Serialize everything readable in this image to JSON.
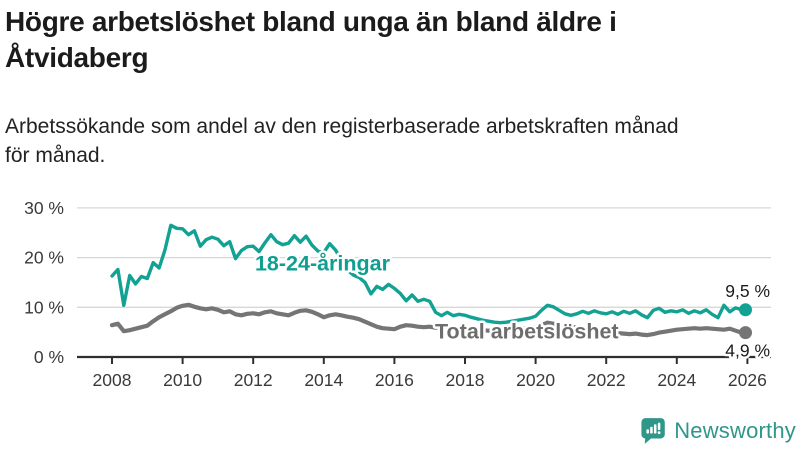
{
  "header": {
    "title": "Högre arbetslöshet bland unga än bland äldre i\nÅtvidaberg",
    "subtitle": "Arbetssökande som andel av den registerbaserade arbetskraften månad\nför månad."
  },
  "colors": {
    "young_line": "#12a294",
    "young_label": "#0f9e90",
    "total_line": "#757575",
    "total_label": "#6d6d6d",
    "axis": "#2f2f2f",
    "tick_text": "#3a3a3a",
    "grid": "#d8d8d8",
    "end_label_text": "#1b1b1b",
    "brand": "#2f968a"
  },
  "chart_data": {
    "type": "line",
    "title": "Högre arbetslöshet bland unga än bland äldre i Åtvidaberg",
    "xlabel": "",
    "ylabel": "",
    "x_start_year": 2008,
    "points_per_year": 6,
    "xlim": [
      2007,
      2026.7
    ],
    "ylim": [
      0,
      30
    ],
    "grid": "horizontal",
    "x_ticks": [
      2008,
      2010,
      2012,
      2014,
      2016,
      2018,
      2020,
      2022,
      2024,
      2026
    ],
    "y_ticks": [
      {
        "v": 0,
        "label": "0 %"
      },
      {
        "v": 10,
        "label": "10 %"
      },
      {
        "v": 20,
        "label": "20 %"
      },
      {
        "v": 30,
        "label": "30 %"
      }
    ],
    "series": [
      {
        "name": "18-24-åringar",
        "end_label": "9,5 %",
        "label_year": 2012.05,
        "label_value": 17.4,
        "values": [
          16.3,
          17.6,
          10.4,
          16.4,
          14.7,
          16.2,
          15.8,
          19.0,
          17.9,
          21.5,
          26.5,
          25.9,
          25.8,
          24.6,
          25.4,
          22.3,
          23.6,
          24.1,
          23.7,
          22.4,
          23.2,
          19.8,
          21.4,
          22.2,
          22.3,
          21.2,
          23.0,
          24.6,
          23.2,
          22.6,
          22.9,
          24.4,
          23.1,
          24.3,
          22.5,
          21.3,
          21.0,
          22.8,
          21.5,
          19.5,
          17.5,
          16.5,
          16.0,
          15.0,
          12.7,
          14.2,
          13.6,
          14.6,
          13.8,
          12.8,
          11.3,
          12.5,
          11.2,
          11.6,
          11.2,
          9.0,
          8.3,
          9.0,
          8.3,
          8.6,
          8.4,
          8.0,
          7.7,
          7.4,
          7.2,
          7.0,
          6.9,
          7.0,
          7.2,
          7.4,
          7.6,
          7.8,
          8.2,
          9.4,
          10.4,
          10.1,
          9.4,
          8.7,
          8.4,
          8.7,
          9.2,
          8.8,
          9.3,
          8.9,
          8.7,
          9.1,
          8.6,
          9.2,
          8.8,
          9.3,
          8.5,
          7.9,
          9.4,
          9.8,
          9.0,
          9.3,
          9.1,
          9.5,
          8.8,
          9.3,
          8.9,
          9.5,
          8.6,
          7.9,
          10.4,
          9.1,
          9.9,
          9.5
        ]
      },
      {
        "name": "Total arbetslöshet",
        "end_label": "4,9 %",
        "label_year": 2017.15,
        "label_value": 3.7,
        "values": [
          6.4,
          6.7,
          5.2,
          5.4,
          5.7,
          6.0,
          6.3,
          7.2,
          8.0,
          8.6,
          9.2,
          9.9,
          10.3,
          10.5,
          10.1,
          9.8,
          9.6,
          9.8,
          9.5,
          9.0,
          9.2,
          8.6,
          8.4,
          8.7,
          8.8,
          8.6,
          9.0,
          9.2,
          8.8,
          8.6,
          8.4,
          8.9,
          9.3,
          9.4,
          9.1,
          8.6,
          8.0,
          8.4,
          8.6,
          8.4,
          8.1,
          7.9,
          7.6,
          7.1,
          6.6,
          6.1,
          5.8,
          5.7,
          5.6,
          6.1,
          6.4,
          6.3,
          6.1,
          6.0,
          6.1,
          5.9,
          6.0,
          6.1,
          6.0,
          5.9,
          5.8,
          5.6,
          5.5,
          5.4,
          5.3,
          5.4,
          5.3,
          5.2,
          5.4,
          5.5,
          5.7,
          5.9,
          6.0,
          6.4,
          6.9,
          6.7,
          6.5,
          6.3,
          6.1,
          5.9,
          5.7,
          5.5,
          5.3,
          5.1,
          5.0,
          4.9,
          4.8,
          4.7,
          4.6,
          4.7,
          4.5,
          4.4,
          4.6,
          4.9,
          5.1,
          5.3,
          5.5,
          5.6,
          5.7,
          5.8,
          5.7,
          5.8,
          5.7,
          5.6,
          5.5,
          5.7,
          5.3,
          4.9
        ]
      }
    ]
  },
  "footer": {
    "brand_name": "Newsworthy"
  }
}
